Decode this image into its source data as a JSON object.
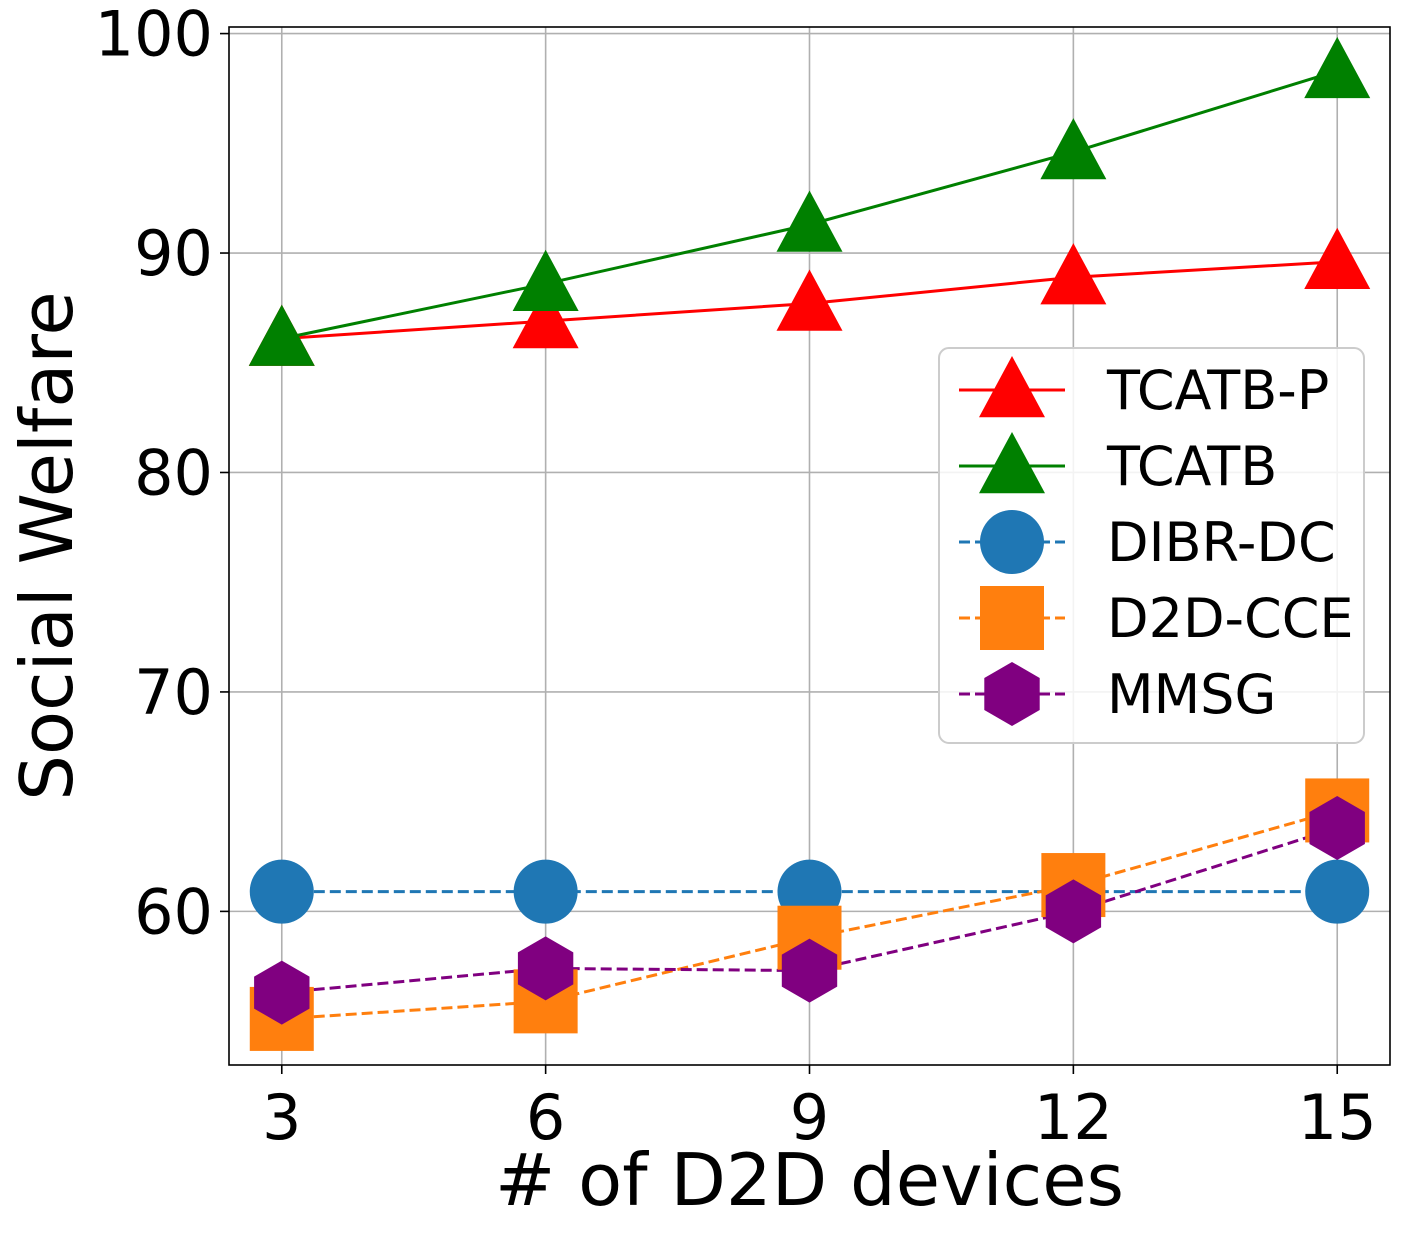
{
  "chart_data": {
    "type": "line",
    "xlabel": "# of D2D devices",
    "ylabel": "Social Welfare",
    "x": [
      3,
      6,
      9,
      12,
      15
    ],
    "xticks": [
      "3",
      "6",
      "9",
      "12",
      "15"
    ],
    "yticks": [
      "60",
      "70",
      "80",
      "90",
      "100"
    ],
    "xlim": [
      2.4,
      15.6
    ],
    "ylim": [
      53.0,
      100.3
    ],
    "grid": true,
    "legend_position": "center-right",
    "series": [
      {
        "name": "TCATB-P",
        "values": [
          86.1,
          86.9,
          87.7,
          88.9,
          89.6
        ],
        "color": "#ff0000",
        "marker": "triangle",
        "line": "solid"
      },
      {
        "name": "TCATB",
        "values": [
          86.1,
          88.6,
          91.3,
          94.6,
          98.3
        ],
        "color": "#008000",
        "marker": "triangle",
        "line": "solid"
      },
      {
        "name": "DIBR-DC",
        "values": [
          60.9,
          60.9,
          60.9,
          60.9,
          60.9
        ],
        "color": "#1f77b4",
        "marker": "circle",
        "line": "dashed"
      },
      {
        "name": "D2D-CCE",
        "values": [
          55.1,
          55.9,
          58.8,
          61.2,
          64.6
        ],
        "color": "#ff7f0e",
        "marker": "square",
        "line": "dashed"
      },
      {
        "name": "MMSG",
        "values": [
          56.3,
          57.4,
          57.3,
          60.0,
          63.8
        ],
        "color": "#800080",
        "marker": "hexagon",
        "line": "dashed"
      }
    ]
  }
}
